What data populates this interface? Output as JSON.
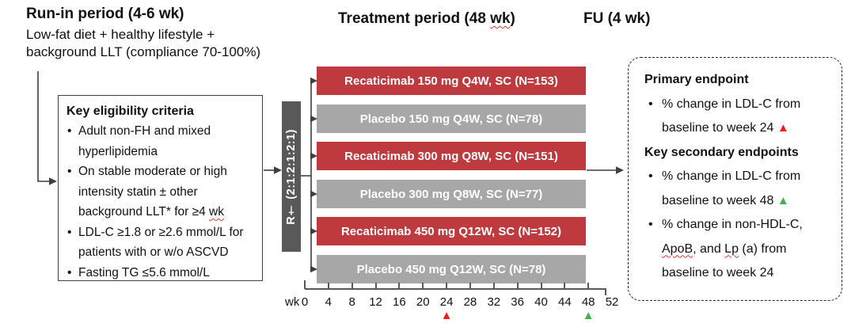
{
  "figure": {
    "phases": {
      "run_in": {
        "title": "Run-in period (4-6 wk)",
        "subtitle_lines": [
          "Low-fat diet + healthy lifestyle +",
          "background LLT (compliance 70-100%)"
        ]
      },
      "treatment": {
        "title_segments": [
          {
            "text": "Treatment period (48 "
          },
          {
            "text": "wk",
            "squiggle": true
          },
          {
            "text": ")"
          }
        ]
      },
      "follow_up": {
        "title": "FU (4 wk)"
      }
    },
    "eligibility": {
      "title": "Key eligibility criteria",
      "bullet_char": "•",
      "bullets": [
        {
          "segments": [
            {
              "text": "Adult non-FH and mixed hyperlipidemia"
            }
          ]
        },
        {
          "segments": [
            {
              "text": "On stable moderate or high intensity statin ± other background LLT* for ≥4 "
            },
            {
              "text": "wk",
              "squiggle": true
            }
          ]
        },
        {
          "segments": [
            {
              "text": "LDL-C ≥1.8 or ≥2.6 mmol/L for patients with or w/o ASCVD"
            }
          ]
        },
        {
          "segments": [
            {
              "text": "Fasting TG ≤5.6 mmol/L"
            }
          ]
        }
      ]
    },
    "randomization": {
      "label": "R† (2:1:2:1:2:1)"
    },
    "arms": [
      {
        "type": "drug",
        "label": "Recaticimab 150 mg Q4W, SC (N=153)"
      },
      {
        "type": "placebo",
        "label": "Placebo 150 mg Q4W, SC (N=78)"
      },
      {
        "type": "drug",
        "label": "Recaticimab 300 mg Q8W, SC (N=151)"
      },
      {
        "type": "placebo",
        "label": "Placebo 300 mg Q8W, SC (N=77)"
      },
      {
        "type": "drug",
        "label": "Recaticimab 450 mg Q12W, SC (N=152)"
      },
      {
        "type": "placebo",
        "label": "Placebo 450 mg Q12W, SC (N=78)"
      }
    ],
    "timeline": {
      "unit_label": "wk",
      "ticks": [
        0,
        4,
        8,
        12,
        16,
        20,
        24,
        28,
        32,
        36,
        40,
        44,
        48,
        52
      ],
      "last_marked_tick": 48,
      "markers": [
        {
          "week": 24,
          "shape": "triangle-up",
          "color_key": "marker_red"
        },
        {
          "week": 48,
          "shape": "triangle-up",
          "color_key": "marker_green"
        }
      ]
    },
    "endpoints": {
      "bullet_char": "•",
      "items": [
        {
          "type": "heading",
          "segments": [
            {
              "text": "Primary endpoint"
            }
          ]
        },
        {
          "type": "bullet",
          "segments": [
            {
              "text": "% change in LDL-C from baseline to week 24 "
            },
            {
              "marker": "marker_red"
            }
          ]
        },
        {
          "type": "heading",
          "segments": [
            {
              "text": "Key secondary endpoints"
            }
          ]
        },
        {
          "type": "bullet",
          "segments": [
            {
              "text": "% change in LDL-C from baseline to week 48 "
            },
            {
              "marker": "marker_green"
            }
          ]
        },
        {
          "type": "bullet",
          "segments": [
            {
              "text": "% change in non-HDL-C, "
            },
            {
              "text": "ApoB",
              "squiggle": true
            },
            {
              "text": ", and "
            },
            {
              "text": "Lp",
              "squiggle": true
            },
            {
              "text": " (a) from baseline to week 24"
            }
          ]
        }
      ]
    },
    "colors": {
      "drug_bar": "#bf3a3e",
      "placebo_bar": "#a7a7a7",
      "randomization_box": "#595959",
      "marker_red": "#f81e14",
      "marker_green": "#3bb54a",
      "squiggle": "#e03a34",
      "line": "#3f3f3f"
    },
    "triangle_char": "▲"
  }
}
